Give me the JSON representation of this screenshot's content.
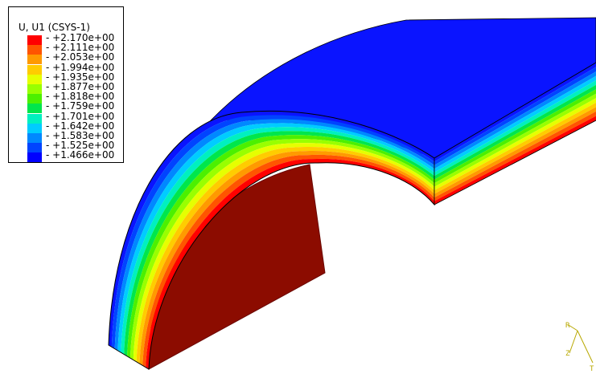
{
  "legend": {
    "title": "U, U1 (CSYS-1)",
    "entries": [
      {
        "value": "+2.170e+00",
        "color": "#ff0000"
      },
      {
        "value": "+2.111e+00",
        "color": "#ff5500"
      },
      {
        "value": "+2.053e+00",
        "color": "#ff9a00"
      },
      {
        "value": "+1.994e+00",
        "color": "#ffcc00"
      },
      {
        "value": "+1.935e+00",
        "color": "#e6ff00"
      },
      {
        "value": "+1.877e+00",
        "color": "#99ff00"
      },
      {
        "value": "+1.818e+00",
        "color": "#4cf000"
      },
      {
        "value": "+1.759e+00",
        "color": "#00e64c"
      },
      {
        "value": "+1.701e+00",
        "color": "#00f0c0"
      },
      {
        "value": "+1.642e+00",
        "color": "#00ccff"
      },
      {
        "value": "+1.583e+00",
        "color": "#0088ff"
      },
      {
        "value": "+1.525e+00",
        "color": "#0044ff"
      },
      {
        "value": "+1.466e+00",
        "color": "#0000ff"
      }
    ]
  },
  "model": {
    "outer_color": "#0a14ff",
    "inner_face_color": "#8c0c00",
    "inner_face_edge_color": "#6a0800"
  },
  "triad": {
    "axis_1": "R",
    "axis_2": "Z",
    "axis_3": "T"
  }
}
